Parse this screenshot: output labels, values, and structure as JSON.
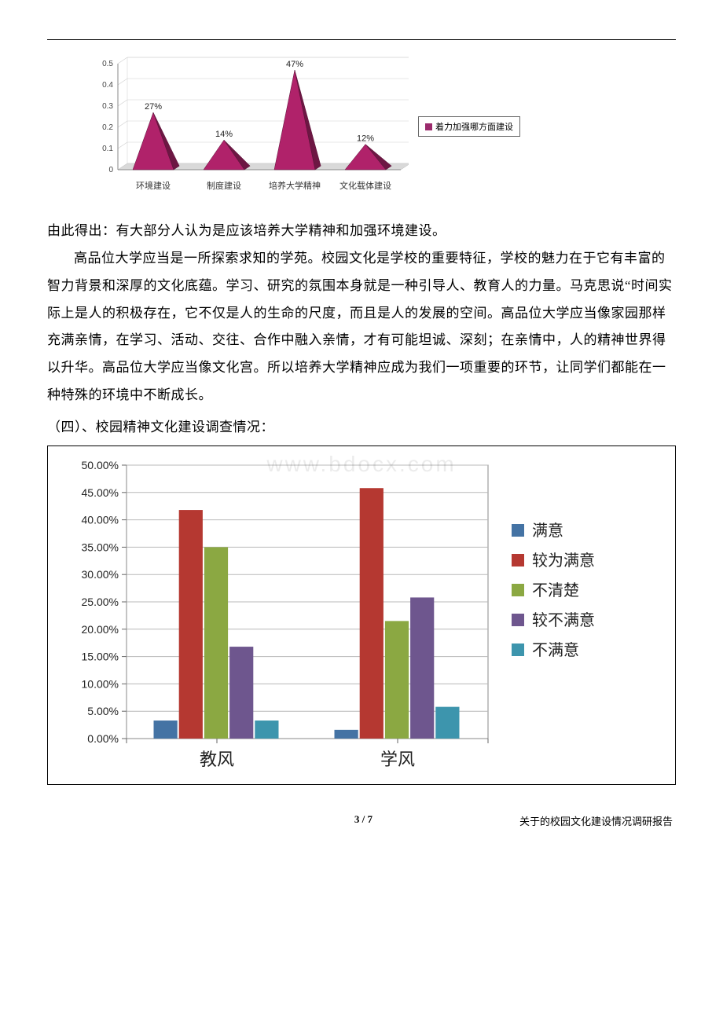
{
  "chart1": {
    "type": "pyramid",
    "categories": [
      "环境建设",
      "制度建设",
      "培养大学精神",
      "文化载体建设"
    ],
    "values": [
      0.27,
      0.14,
      0.47,
      0.12
    ],
    "value_labels": [
      "27%",
      "14%",
      "47%",
      "12%"
    ],
    "ylim": [
      0,
      0.5
    ],
    "ytick_step": 0.1,
    "yticks": [
      "0",
      "0.1",
      "0.2",
      "0.3",
      "0.4",
      "0.5"
    ],
    "bar_color": "#b0226a",
    "bar_side_color": "#6d1743",
    "background_color": "#ffffff",
    "grid_color": "#cfcfcf",
    "legend": "着力加强哪方面建设"
  },
  "text": {
    "conclusion": "由此得出：有大部分人认为是应该培养大学精神和加强环境建设。",
    "body": "高品位大学应当是一所探索求知的学苑。校园文化是学校的重要特征，学校的魅力在于它有丰富的智力背景和深厚的文化底蕴。学习、研究的氛围本身就是一种引导人、教育人的力量。马克思说“时间实际上是人的积极存在，它不仅是人的生命的尺度，而且是人的发展的空间。高品位大学应当像家园那样充满亲情，在学习、活动、交往、合作中融入亲情，才有可能坦诚、深刻；在亲情中，人的精神世界得以升华。高品位大学应当像文化宫。所以培养大学精神应成为我们一项重要的环节，让同学们都能在一种特殊的环境中不断成长。",
    "heading": "（四）、校园精神文化建设调查情况："
  },
  "watermark": "www.bdocx.com",
  "chart2": {
    "type": "bar",
    "categories": [
      "教风",
      "学风"
    ],
    "series": [
      {
        "name": "满意",
        "color": "#4473a4",
        "values": [
          0.033,
          0.016
        ]
      },
      {
        "name": "较为满意",
        "color": "#b53831",
        "values": [
          0.418,
          0.458
        ]
      },
      {
        "name": "不清楚",
        "color": "#8ba842",
        "values": [
          0.35,
          0.215
        ]
      },
      {
        "name": "较不满意",
        "color": "#6e568e",
        "values": [
          0.168,
          0.258
        ]
      },
      {
        "name": "不满意",
        "color": "#3d95ad",
        "values": [
          0.033,
          0.058
        ]
      }
    ],
    "ylim": [
      0,
      0.5
    ],
    "ytick_step": 0.05,
    "yticks": [
      "0.00%",
      "5.00%",
      "10.00%",
      "15.00%",
      "20.00%",
      "25.00%",
      "30.00%",
      "35.00%",
      "40.00%",
      "45.00%",
      "50.00%"
    ],
    "background_color": "#ffffff",
    "grid_color": "#b8b8b8",
    "border_color": "#888888",
    "bar_width": 0.75
  },
  "footer": {
    "page": "3 / 7",
    "title": "关于的校园文化建设情况调研报告"
  }
}
